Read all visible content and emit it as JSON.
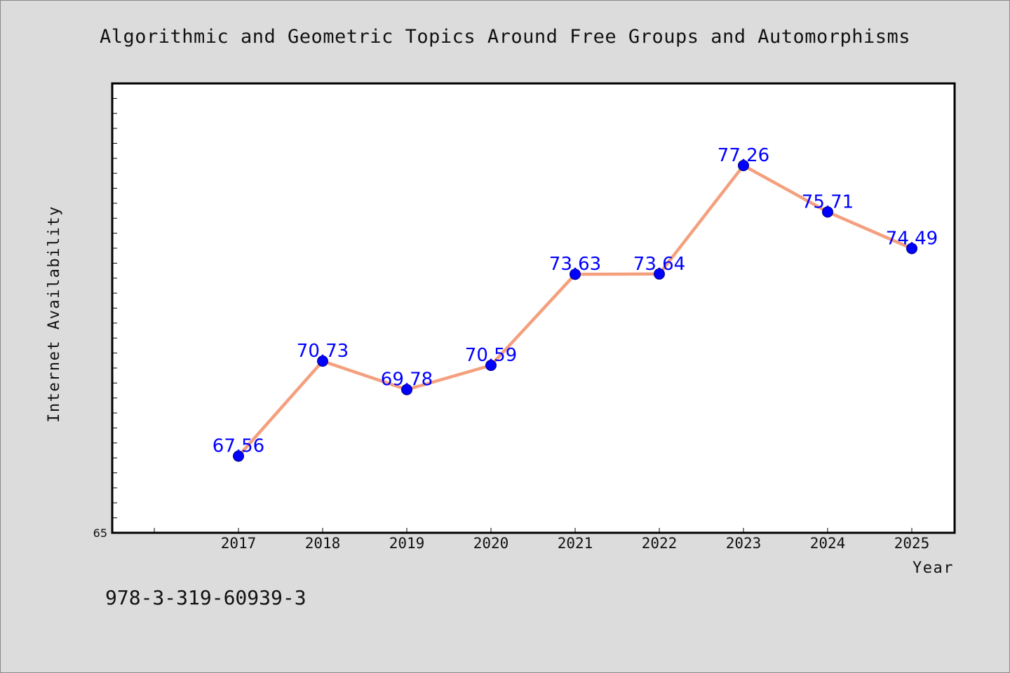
{
  "chart_data": {
    "type": "line",
    "title": "Algorithmic and Geometric Topics Around Free Groups and Automorphisms",
    "xlabel": "Year",
    "ylabel": "Internet Availability",
    "categories": [
      "2017",
      "2018",
      "2019",
      "2020",
      "2021",
      "2022",
      "2023",
      "2024",
      "2025"
    ],
    "series": [
      {
        "values": [
          67.56,
          70.73,
          69.78,
          70.59,
          73.63,
          73.64,
          77.26,
          75.71,
          74.49
        ],
        "line_color": "#f4a07e",
        "marker_color": "#0000ff"
      }
    ],
    "data_labels": [
      "67.56",
      "70.73",
      "69.78",
      "70.59",
      "73.63",
      "73.64",
      "77.26",
      "75.71",
      "74.49"
    ],
    "ylim": [
      65,
      80
    ],
    "ytick_labels": [
      "65"
    ],
    "grid": false,
    "legend": "none"
  },
  "footer_text": "978-3-319-60939-3",
  "colors": {
    "background": "#dcdcdc",
    "plot_background": "#ffffff",
    "label_color": "#0000ff"
  }
}
